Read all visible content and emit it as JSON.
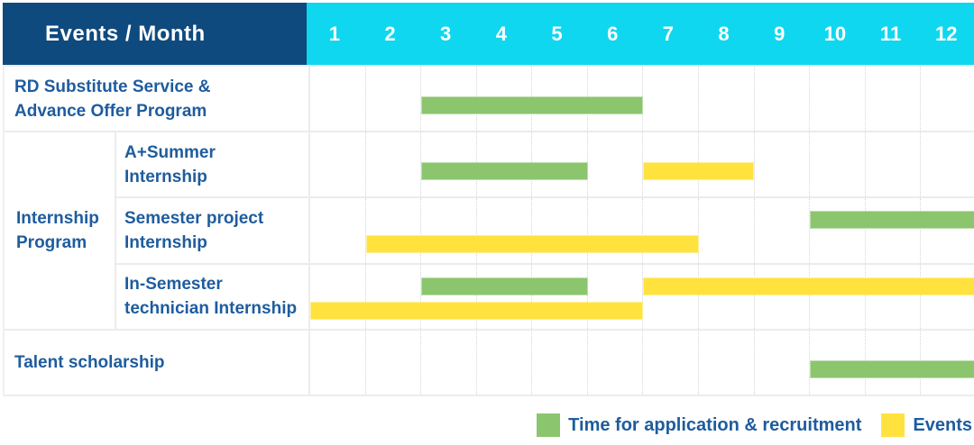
{
  "header": {
    "title": "Events / Month"
  },
  "colors": {
    "header_bg": "#0F4A7E",
    "months_bg": "#0FD7EF",
    "application_green": "#8BC56E",
    "event_yellow": "#FFE23E",
    "label_text": "#1E5C9E",
    "grid_line": "#ECECEC"
  },
  "chart_data": {
    "type": "bar",
    "subtype": "gantt",
    "title": "Events / Month",
    "x_categories": [
      "1",
      "2",
      "3",
      "4",
      "5",
      "6",
      "7",
      "8",
      "9",
      "10",
      "11",
      "12"
    ],
    "x_range": [
      1,
      12
    ],
    "grid": "dotted-vertical-month-lines",
    "legend_position": "bottom-right",
    "group": {
      "label": "Internship Program",
      "lines": [
        "Internship",
        "Program"
      ],
      "spans_tasks": [
        1,
        2,
        3
      ]
    },
    "tasks": [
      {
        "name": "RD Substitute Service & Advance Offer Program",
        "lines": [
          "RD Substitute Service &",
          "Advance Offer Program"
        ],
        "bars": [
          {
            "kind": "application",
            "start_month": 3,
            "end_month": 6,
            "lane": "single"
          }
        ]
      },
      {
        "name": "A+Summer Internship",
        "lines": [
          "A+Summer",
          "Internship"
        ],
        "bars": [
          {
            "kind": "application",
            "start_month": 3,
            "end_month": 5,
            "lane": "single"
          },
          {
            "kind": "event",
            "start_month": 7,
            "end_month": 8,
            "lane": "single"
          }
        ]
      },
      {
        "name": "Semester project Internship",
        "lines": [
          "Semester project",
          "Internship"
        ],
        "bars": [
          {
            "kind": "application",
            "start_month": 10,
            "end_month": 12,
            "lane": "upper"
          },
          {
            "kind": "event",
            "start_month": 2,
            "end_month": 7,
            "lane": "lower"
          }
        ]
      },
      {
        "name": "In-Semester technician Internship",
        "lines": [
          "In-Semester",
          "technician Internship"
        ],
        "bars": [
          {
            "kind": "application",
            "start_month": 3,
            "end_month": 5,
            "lane": "upper"
          },
          {
            "kind": "event",
            "start_month": 7,
            "end_month": 12,
            "lane": "upper"
          },
          {
            "kind": "event",
            "start_month": 1,
            "end_month": 6,
            "lane": "lower"
          }
        ]
      },
      {
        "name": "Talent scholarship",
        "lines": [
          "Talent scholarship"
        ],
        "bars": [
          {
            "kind": "application",
            "start_month": 10,
            "end_month": 12,
            "lane": "single"
          }
        ]
      }
    ],
    "legend": [
      {
        "kind": "application",
        "label": "Time for application & recruitment",
        "color": "#8BC56E"
      },
      {
        "kind": "event",
        "label": "Events",
        "color": "#FFE23E"
      }
    ]
  }
}
